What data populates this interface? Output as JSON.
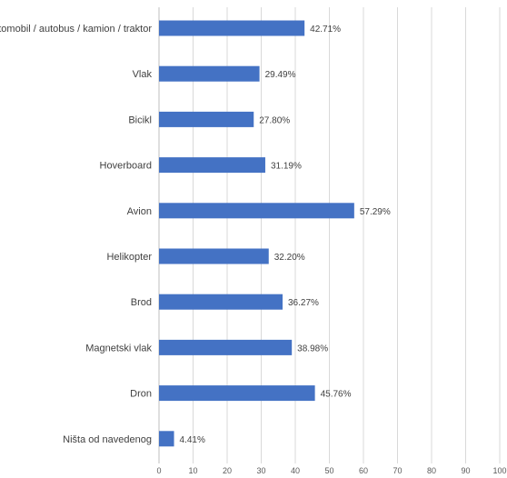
{
  "chart_data": {
    "type": "bar",
    "orientation": "horizontal",
    "categories": [
      "Automobil / autobus / kamion / traktor",
      "Vlak",
      "Bicikl",
      "Hoverboard",
      "Avion",
      "Helikopter",
      "Brod",
      "Magnetski vlak",
      "Dron",
      "Ništa od navedenog"
    ],
    "values": [
      42.71,
      29.49,
      27.8,
      31.19,
      57.29,
      32.2,
      36.27,
      38.98,
      45.76,
      4.41
    ],
    "value_labels": [
      "42.71%",
      "29.49%",
      "27.80%",
      "31.19%",
      "57.29%",
      "32.20%",
      "36.27%",
      "38.98%",
      "45.76%",
      "4.41%"
    ],
    "xlim": [
      0,
      100
    ],
    "xticks": [
      0,
      10,
      20,
      30,
      40,
      50,
      60,
      70,
      80,
      90,
      100
    ],
    "grid": true,
    "bar_color": "#4472c4"
  }
}
